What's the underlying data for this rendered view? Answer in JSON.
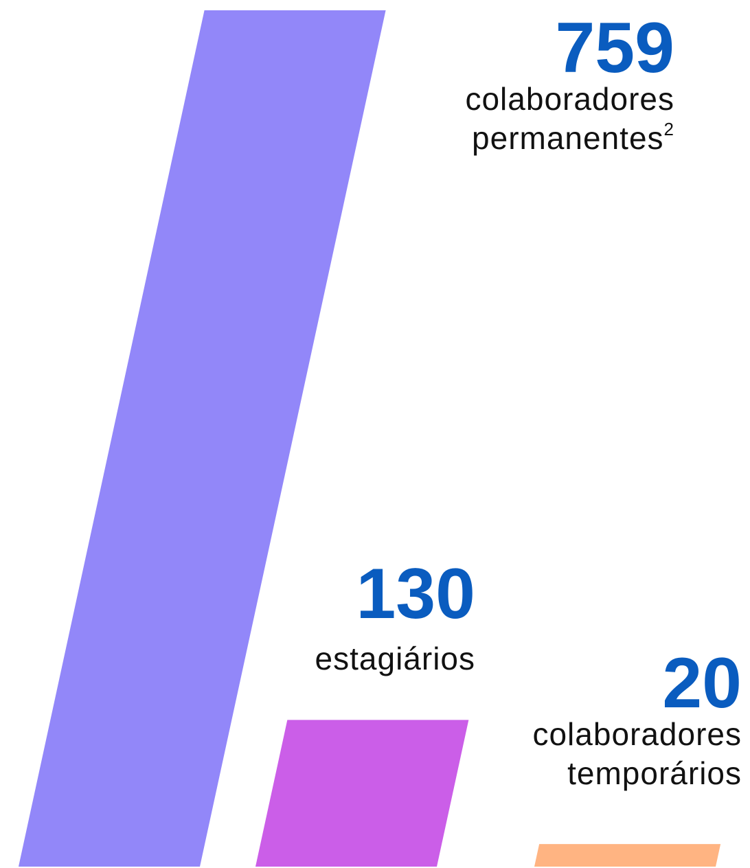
{
  "chart_data": {
    "type": "bar",
    "categories": [
      [
        "colaboradores",
        "permanentes"
      ],
      [
        "estagiários"
      ],
      [
        "colaboradores",
        "temporários"
      ]
    ],
    "category_notes": [
      "2",
      null,
      null
    ],
    "values": [
      759,
      130,
      20
    ],
    "colors": [
      "#9287f9",
      "#cb5ee8",
      "#ffb482"
    ]
  }
}
